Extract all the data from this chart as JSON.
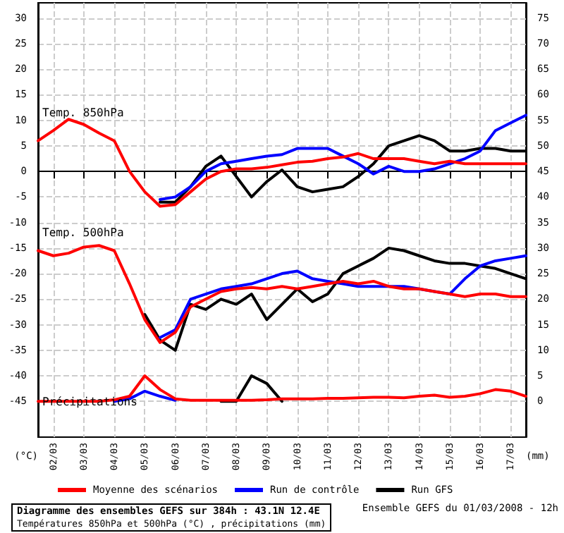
{
  "chart_data": {
    "type": "line",
    "title": "Diagramme des ensembles GEFS sur 384h : 43.1N 12.4E",
    "subtitle": "Températures 850hPa et 500hPa (°C) , précipitations (mm)",
    "ylabel": "(°C)",
    "y2label": "(mm)",
    "annotations": [
      "Temp. 850hPa",
      "Temp. 500hPa",
      "Précipitations",
      "Ensemble GEFS du 01/03/2008 - 12h"
    ],
    "x": [
      "2008-03-01T12:00",
      "2008-03-02T00:00",
      "2008-03-02T12:00",
      "2008-03-03T00:00",
      "2008-03-03T12:00",
      "2008-03-04T00:00",
      "2008-03-04T12:00",
      "2008-03-05T00:00",
      "2008-03-05T12:00",
      "2008-03-06T00:00",
      "2008-03-06T12:00",
      "2008-03-07T00:00",
      "2008-03-07T12:00",
      "2008-03-08T00:00",
      "2008-03-08T12:00",
      "2008-03-09T00:00",
      "2008-03-09T12:00",
      "2008-03-10T00:00",
      "2008-03-10T12:00",
      "2008-03-11T00:00",
      "2008-03-11T12:00",
      "2008-03-12T00:00",
      "2008-03-12T12:00",
      "2008-03-13T00:00",
      "2008-03-13T12:00",
      "2008-03-14T00:00",
      "2008-03-14T12:00",
      "2008-03-15T00:00",
      "2008-03-15T12:00",
      "2008-03-16T00:00",
      "2008-03-16T12:00",
      "2008-03-17T00:00",
      "2008-03-17T12:00"
    ],
    "series": [
      {
        "name": "Moyenne des scénarios",
        "color": "#ff0000",
        "values": [
          6,
          8,
          10.2,
          9.2,
          7.5,
          6,
          0,
          -4,
          -6.8,
          -6.5,
          -4,
          -1.5,
          0,
          0.5,
          0.5,
          0.8,
          1.3,
          1.8,
          2,
          2.5,
          2.8,
          3.5,
          2.5,
          2.5,
          2.5,
          2,
          1.5,
          2,
          1.5,
          1.5,
          1.5,
          1.5,
          1.5
        ]
      },
      {
        "name": "Run de contrôle",
        "color": "#0000ff",
        "values": [
          null,
          null,
          null,
          null,
          null,
          null,
          null,
          null,
          -5.5,
          -5,
          -3,
          0,
          1.5,
          2,
          2.5,
          3,
          3.3,
          4.5,
          4.5,
          4.5,
          3,
          1.5,
          -0.5,
          1,
          0,
          0,
          0.5,
          1.5,
          2.5,
          4,
          8,
          9.5,
          11
        ]
      },
      {
        "name": "Run GFS",
        "color": "#000000",
        "values": [
          null,
          null,
          null,
          null,
          null,
          null,
          null,
          null,
          -6,
          -6,
          -3,
          1,
          3,
          -1,
          -5,
          -2,
          0.3,
          -3,
          -4,
          -3.5,
          -3,
          -1,
          1.5,
          5,
          6,
          7,
          6,
          4,
          4,
          4.5,
          4.5,
          4,
          4
        ]
      },
      {
        "color": "#ff0000",
        "values": [
          -15.5,
          -16.5,
          -16,
          -14.8,
          -14.5,
          -15.5,
          -22,
          -29,
          -33.5,
          -31.5,
          -26.5,
          -25,
          -23.5,
          -23,
          -22.7,
          -23,
          -22.5,
          -23,
          -22.5,
          -22,
          -21.5,
          -22,
          -21.5,
          -22.5,
          -23,
          -23,
          -23.5,
          -24,
          -24.5,
          -24,
          -24,
          -24.5,
          -24.5
        ]
      },
      {
        "color": "#0000ff",
        "values": [
          null,
          null,
          null,
          null,
          null,
          null,
          null,
          null,
          -32.5,
          -31,
          -25,
          -24,
          -23,
          -22.5,
          -22,
          -21,
          -20,
          -19.5,
          -21,
          -21.5,
          -22,
          -22.5,
          -22.5,
          -22.5,
          -22.5,
          -23,
          -23.5,
          -24,
          -21,
          -18.5,
          -17.5,
          -17,
          -16.5
        ]
      },
      {
        "color": "#000000",
        "values": [
          null,
          null,
          null,
          null,
          null,
          null,
          null,
          -28,
          -33,
          -35,
          -26,
          -27,
          -25,
          -26,
          -24,
          -29,
          -26,
          -23,
          -25.5,
          -24,
          -20,
          -18.5,
          -17,
          -15,
          -15.5,
          -16.5,
          -17.5,
          -18,
          -18,
          -18.5,
          -19,
          -20,
          -21
        ]
      },
      {
        "color": "#ff0000",
        "axis": "y2",
        "values": [
          0,
          0,
          0,
          0,
          0,
          0.3,
          1,
          5,
          2.3,
          0.5,
          0.2,
          0.2,
          0.2,
          0.2,
          0.2,
          0.3,
          0.5,
          0.5,
          0.5,
          0.6,
          0.6,
          0.7,
          0.8,
          0.8,
          0.7,
          1,
          1.2,
          0.8,
          1,
          1.5,
          2.3,
          2,
          1
        ]
      },
      {
        "color": "#0000ff",
        "axis": "y2",
        "values": [
          null,
          null,
          null,
          null,
          null,
          0,
          0.5,
          2,
          1,
          0.2,
          null,
          null,
          null,
          null,
          null,
          null,
          null,
          null,
          null,
          null,
          null,
          null,
          null,
          null,
          null,
          null,
          null,
          null,
          null,
          null,
          null,
          null,
          null
        ]
      },
      {
        "color": "#000000",
        "axis": "y2",
        "values": [
          null,
          null,
          null,
          null,
          null,
          null,
          null,
          null,
          null,
          null,
          null,
          null,
          0,
          0,
          5,
          3.5,
          0,
          null,
          null,
          null,
          null,
          null,
          null,
          null,
          null,
          null,
          null,
          null,
          null,
          null,
          null,
          null,
          null
        ]
      }
    ],
    "xlim": [
      "2008-03-01T12:00",
      "2008-03-17T12:00"
    ],
    "xticks": [
      {
        "value": "2008-03-02",
        "label": "02/03"
      },
      {
        "value": "2008-03-03",
        "label": "03/03"
      },
      {
        "value": "2008-03-04",
        "label": "04/03"
      },
      {
        "value": "2008-03-05",
        "label": "05/03"
      },
      {
        "value": "2008-03-06",
        "label": "06/03"
      },
      {
        "value": "2008-03-07",
        "label": "07/03"
      },
      {
        "value": "2008-03-08",
        "label": "08/03"
      },
      {
        "value": "2008-03-09",
        "label": "09/03"
      },
      {
        "value": "2008-03-10",
        "label": "10/03"
      },
      {
        "value": "2008-03-11",
        "label": "11/03"
      },
      {
        "value": "2008-03-12",
        "label": "12/03"
      },
      {
        "value": "2008-03-13",
        "label": "13/03"
      },
      {
        "value": "2008-03-14",
        "label": "14/03"
      },
      {
        "value": "2008-03-15",
        "label": "15/03"
      },
      {
        "value": "2008-03-16",
        "label": "16/03"
      },
      {
        "value": "2008-03-17",
        "label": "17/03"
      }
    ],
    "ylim": [
      -52,
      33
    ],
    "yticks": [
      -45,
      -40,
      -35,
      -30,
      -25,
      -20,
      -15,
      -10,
      -5,
      0,
      5,
      10,
      15,
      20,
      25,
      30
    ],
    "y2lim": [
      -7,
      78
    ],
    "y2ticks": [
      0,
      5,
      10,
      15,
      20,
      25,
      30,
      35,
      40,
      45,
      50,
      55,
      60,
      65,
      70,
      75
    ],
    "grid": true,
    "legend": "bottom",
    "marker": "none",
    "line_style": "solid"
  }
}
